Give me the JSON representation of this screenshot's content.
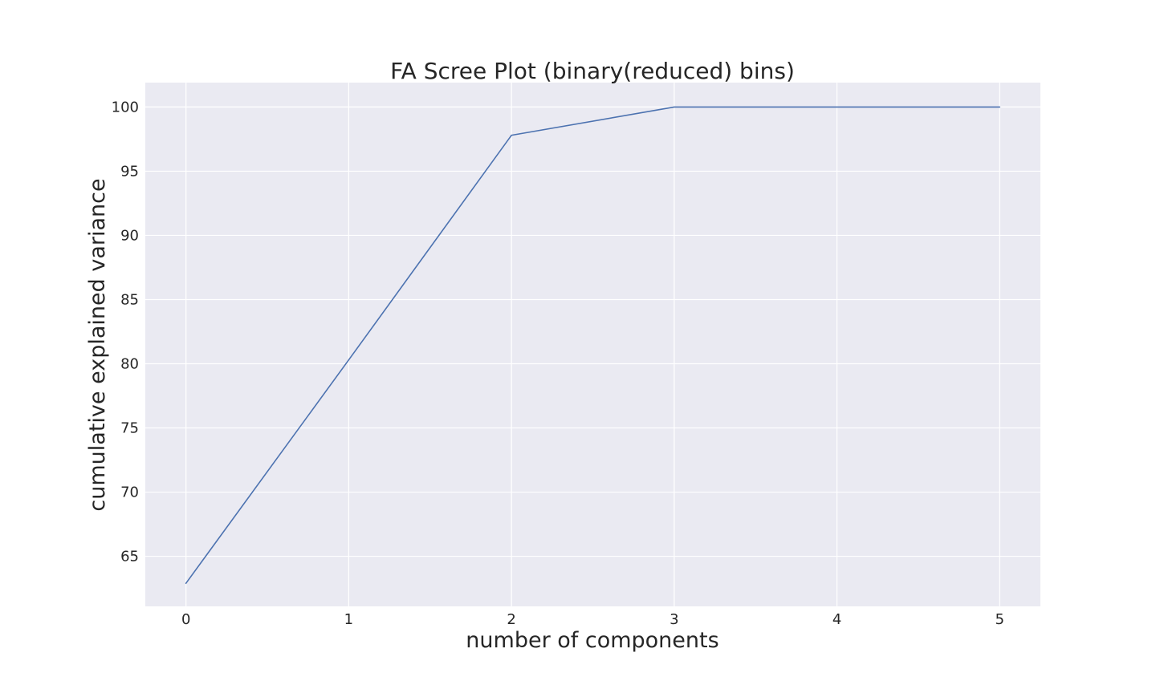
{
  "chart_data": {
    "type": "line",
    "title": "FA Scree Plot (binary(reduced) bins)",
    "xlabel": "number of components",
    "ylabel": "cumulative explained variance",
    "x": [
      0,
      1,
      2,
      3,
      4,
      5
    ],
    "series": [
      {
        "values": [
          62.9,
          80.3,
          97.8,
          100.0,
          100.0,
          100.0
        ],
        "color": "#4c72b0"
      }
    ],
    "xlim": [
      -0.25,
      5.25
    ],
    "ylim": [
      61.1,
      101.9
    ],
    "xticks": [
      "0",
      "1",
      "2",
      "3",
      "4",
      "5"
    ],
    "yticks": [
      "65",
      "70",
      "75",
      "80",
      "85",
      "90",
      "95",
      "100"
    ],
    "grid": true,
    "legend": "none",
    "colors": {
      "plot_background": "#eaeaf2",
      "grid": "#ffffff",
      "line": "#4c72b0"
    }
  }
}
